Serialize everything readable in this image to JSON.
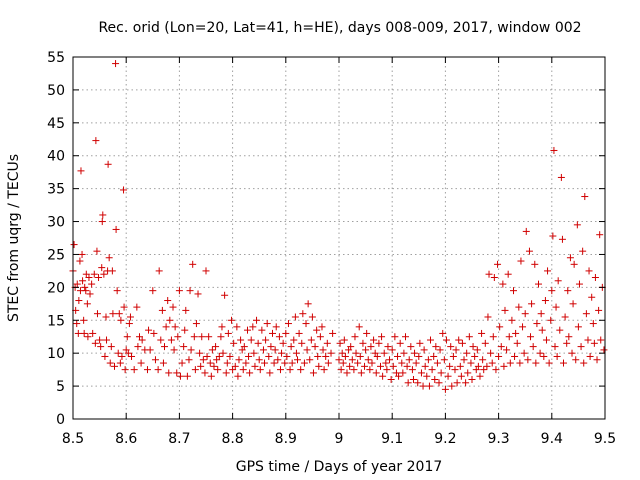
{
  "chart_data": {
    "type": "scatter",
    "title": "Rec. orid (Lon=20, Lat=41, h=HE), days 008-009, 2017, window 002",
    "xlabel": "GPS time / Days of year 2017",
    "ylabel": "STEC from uqrg / TECUs",
    "xlim": [
      8.5,
      9.5
    ],
    "ylim": [
      0,
      55
    ],
    "xticks": [
      "8.5",
      "8.6",
      "8.7",
      "8.8",
      "8.9",
      "9",
      "9.1",
      "9.2",
      "9.3",
      "9.4",
      "9.5"
    ],
    "yticks": [
      "0",
      "5",
      "10",
      "15",
      "20",
      "25",
      "30",
      "35",
      "40",
      "45",
      "50",
      "55"
    ],
    "grid": true,
    "marker": "+",
    "color": "#d00000",
    "points": [
      [
        8.5,
        22.5
      ],
      [
        8.502,
        26.5
      ],
      [
        8.504,
        20.0
      ],
      [
        8.505,
        16.5
      ],
      [
        8.507,
        14.5
      ],
      [
        8.508,
        20.5
      ],
      [
        8.51,
        13.0
      ],
      [
        8.511,
        18.0
      ],
      [
        8.513,
        24.0
      ],
      [
        8.514,
        19.5
      ],
      [
        8.515,
        37.7
      ],
      [
        8.517,
        25.0
      ],
      [
        8.518,
        21.0
      ],
      [
        8.52,
        15.0
      ],
      [
        8.521,
        13.0
      ],
      [
        8.522,
        20.0
      ],
      [
        8.524,
        19.5
      ],
      [
        8.525,
        22.0
      ],
      [
        8.527,
        17.5
      ],
      [
        8.528,
        12.5
      ],
      [
        8.53,
        21.5
      ],
      [
        8.532,
        19.0
      ],
      [
        8.535,
        20.5
      ],
      [
        8.537,
        13.0
      ],
      [
        8.54,
        22.0
      ],
      [
        8.542,
        11.5
      ],
      [
        8.543,
        42.3
      ],
      [
        8.545,
        25.5
      ],
      [
        8.546,
        16.0
      ],
      [
        8.548,
        21.5
      ],
      [
        8.55,
        12.0
      ],
      [
        8.552,
        11.0
      ],
      [
        8.554,
        23.0
      ],
      [
        8.555,
        30.0
      ],
      [
        8.556,
        31.0
      ],
      [
        8.558,
        22.0
      ],
      [
        8.56,
        9.5
      ],
      [
        8.562,
        15.5
      ],
      [
        8.563,
        12.0
      ],
      [
        8.565,
        22.5
      ],
      [
        8.566,
        38.7
      ],
      [
        8.568,
        24.5
      ],
      [
        8.57,
        8.5
      ],
      [
        8.572,
        11.0
      ],
      [
        8.574,
        22.5
      ],
      [
        8.575,
        16.0
      ],
      [
        8.578,
        8.0
      ],
      [
        8.58,
        54.0
      ],
      [
        8.581,
        28.8
      ],
      [
        8.583,
        19.5
      ],
      [
        8.585,
        10.0
      ],
      [
        8.587,
        16.0
      ],
      [
        8.589,
        8.5
      ],
      [
        8.59,
        15.0
      ],
      [
        8.592,
        9.5
      ],
      [
        8.595,
        34.8
      ],
      [
        8.596,
        17.0
      ],
      [
        8.598,
        7.5
      ],
      [
        8.6,
        10.5
      ],
      [
        8.602,
        12.5
      ],
      [
        8.604,
        10.0
      ],
      [
        8.606,
        14.5
      ],
      [
        8.608,
        15.5
      ],
      [
        8.61,
        9.5
      ],
      [
        8.615,
        7.5
      ],
      [
        8.62,
        17.0
      ],
      [
        8.622,
        11.0
      ],
      [
        8.625,
        12.5
      ],
      [
        8.628,
        8.5
      ],
      [
        8.63,
        12.0
      ],
      [
        8.635,
        10.5
      ],
      [
        8.64,
        7.5
      ],
      [
        8.642,
        13.5
      ],
      [
        8.645,
        10.5
      ],
      [
        8.65,
        19.5
      ],
      [
        8.652,
        13.0
      ],
      [
        8.655,
        9.0
      ],
      [
        8.66,
        7.5
      ],
      [
        8.662,
        22.5
      ],
      [
        8.665,
        12.0
      ],
      [
        8.668,
        16.5
      ],
      [
        8.67,
        8.5
      ],
      [
        8.672,
        11.0
      ],
      [
        8.675,
        14.0
      ],
      [
        8.678,
        18.0
      ],
      [
        8.68,
        7.0
      ],
      [
        8.682,
        15.0
      ],
      [
        8.685,
        12.0
      ],
      [
        8.688,
        17.0
      ],
      [
        8.69,
        10.5
      ],
      [
        8.692,
        14.0
      ],
      [
        8.695,
        7.0
      ],
      [
        8.697,
        12.5
      ],
      [
        8.7,
        19.5
      ],
      [
        8.702,
        6.5
      ],
      [
        8.705,
        8.5
      ],
      [
        8.708,
        11.0
      ],
      [
        8.71,
        13.5
      ],
      [
        8.712,
        16.5
      ],
      [
        8.715,
        6.5
      ],
      [
        8.718,
        9.0
      ],
      [
        8.72,
        19.5
      ],
      [
        8.722,
        10.5
      ],
      [
        8.725,
        23.5
      ],
      [
        8.728,
        12.5
      ],
      [
        8.73,
        7.5
      ],
      [
        8.732,
        14.5
      ],
      [
        8.735,
        19.0
      ],
      [
        8.738,
        10.0
      ],
      [
        8.74,
        8.0
      ],
      [
        8.742,
        12.5
      ],
      [
        8.745,
        9.0
      ],
      [
        8.748,
        7.0
      ],
      [
        8.75,
        22.5
      ],
      [
        8.752,
        9.5
      ],
      [
        8.755,
        12.5
      ],
      [
        8.758,
        8.5
      ],
      [
        8.76,
        6.5
      ],
      [
        8.762,
        10.5
      ],
      [
        8.765,
        8.0
      ],
      [
        8.768,
        11.0
      ],
      [
        8.77,
        9.0
      ],
      [
        8.772,
        7.5
      ],
      [
        8.775,
        9.5
      ],
      [
        8.778,
        12.5
      ],
      [
        8.78,
        14.0
      ],
      [
        8.782,
        10.0
      ],
      [
        8.785,
        18.8
      ],
      [
        8.788,
        7.0
      ],
      [
        8.79,
        8.5
      ],
      [
        8.792,
        13.0
      ],
      [
        8.795,
        9.5
      ],
      [
        8.798,
        15.0
      ],
      [
        8.8,
        7.5
      ],
      [
        8.802,
        11.5
      ],
      [
        8.805,
        8.0
      ],
      [
        8.808,
        14.0
      ],
      [
        8.81,
        6.5
      ],
      [
        8.812,
        9.0
      ],
      [
        8.815,
        12.0
      ],
      [
        8.818,
        10.5
      ],
      [
        8.82,
        7.5
      ],
      [
        8.822,
        11.0
      ],
      [
        8.825,
        8.5
      ],
      [
        8.828,
        13.5
      ],
      [
        8.83,
        9.5
      ],
      [
        8.832,
        7.0
      ],
      [
        8.835,
        12.0
      ],
      [
        8.838,
        14.0
      ],
      [
        8.84,
        10.0
      ],
      [
        8.842,
        8.0
      ],
      [
        8.845,
        15.0
      ],
      [
        8.848,
        11.5
      ],
      [
        8.85,
        9.0
      ],
      [
        8.852,
        7.5
      ],
      [
        8.855,
        13.5
      ],
      [
        8.858,
        10.5
      ],
      [
        8.86,
        8.5
      ],
      [
        8.862,
        12.0
      ],
      [
        8.865,
        14.5
      ],
      [
        8.868,
        9.5
      ],
      [
        8.87,
        7.0
      ],
      [
        8.872,
        11.0
      ],
      [
        8.875,
        13.0
      ],
      [
        8.878,
        8.5
      ],
      [
        8.88,
        10.5
      ],
      [
        8.882,
        14.0
      ],
      [
        8.885,
        9.0
      ],
      [
        8.888,
        12.5
      ],
      [
        8.89,
        7.5
      ],
      [
        8.892,
        10.0
      ],
      [
        8.895,
        11.5
      ],
      [
        8.898,
        8.5
      ],
      [
        8.9,
        13.0
      ],
      [
        8.902,
        9.5
      ],
      [
        8.905,
        14.5
      ],
      [
        8.908,
        7.5
      ],
      [
        8.91,
        11.0
      ],
      [
        8.912,
        8.5
      ],
      [
        8.915,
        12.0
      ],
      [
        8.918,
        15.5
      ],
      [
        8.92,
        10.0
      ],
      [
        8.922,
        9.0
      ],
      [
        8.925,
        13.0
      ],
      [
        8.928,
        7.5
      ],
      [
        8.93,
        11.5
      ],
      [
        8.932,
        16.0
      ],
      [
        8.935,
        8.5
      ],
      [
        8.938,
        14.5
      ],
      [
        8.94,
        10.5
      ],
      [
        8.942,
        17.5
      ],
      [
        8.945,
        9.0
      ],
      [
        8.948,
        12.0
      ],
      [
        8.95,
        15.5
      ],
      [
        8.952,
        7.0
      ],
      [
        8.955,
        11.0
      ],
      [
        8.958,
        13.5
      ],
      [
        8.96,
        9.5
      ],
      [
        8.962,
        8.0
      ],
      [
        8.965,
        12.5
      ],
      [
        8.968,
        14.0
      ],
      [
        8.97,
        10.5
      ],
      [
        8.972,
        7.5
      ],
      [
        8.975,
        9.5
      ],
      [
        8.978,
        11.5
      ],
      [
        8.98,
        8.5
      ],
      [
        8.985,
        10.0
      ],
      [
        8.988,
        13.0
      ],
      [
        9.0,
        9.0
      ],
      [
        9.002,
        11.5
      ],
      [
        9.004,
        7.5
      ],
      [
        9.006,
        10.0
      ],
      [
        9.008,
        8.5
      ],
      [
        9.01,
        12.0
      ],
      [
        9.012,
        9.5
      ],
      [
        9.015,
        7.0
      ],
      [
        9.018,
        10.5
      ],
      [
        9.02,
        8.0
      ],
      [
        9.022,
        11.0
      ],
      [
        9.025,
        9.0
      ],
      [
        9.028,
        7.5
      ],
      [
        9.03,
        12.5
      ],
      [
        9.032,
        10.0
      ],
      [
        9.035,
        8.5
      ],
      [
        9.038,
        14.0
      ],
      [
        9.04,
        9.5
      ],
      [
        9.042,
        7.0
      ],
      [
        9.045,
        11.5
      ],
      [
        9.048,
        8.0
      ],
      [
        9.05,
        10.5
      ],
      [
        9.052,
        13.0
      ],
      [
        9.055,
        9.0
      ],
      [
        9.058,
        7.5
      ],
      [
        9.06,
        11.0
      ],
      [
        9.062,
        8.5
      ],
      [
        9.065,
        12.0
      ],
      [
        9.068,
        10.0
      ],
      [
        9.07,
        7.0
      ],
      [
        9.072,
        9.5
      ],
      [
        9.075,
        11.5
      ],
      [
        9.078,
        8.0
      ],
      [
        9.08,
        12.5
      ],
      [
        9.082,
        6.5
      ],
      [
        9.085,
        10.0
      ],
      [
        9.088,
        8.5
      ],
      [
        9.09,
        7.5
      ],
      [
        9.092,
        11.0
      ],
      [
        9.095,
        9.0
      ],
      [
        9.098,
        6.0
      ],
      [
        9.1,
        10.5
      ],
      [
        9.102,
        8.0
      ],
      [
        9.105,
        12.5
      ],
      [
        9.108,
        7.0
      ],
      [
        9.11,
        9.5
      ],
      [
        9.112,
        6.5
      ],
      [
        9.115,
        11.5
      ],
      [
        9.118,
        8.5
      ],
      [
        9.12,
        7.0
      ],
      [
        9.122,
        10.0
      ],
      [
        9.125,
        12.5
      ],
      [
        9.128,
        8.0
      ],
      [
        9.13,
        5.5
      ],
      [
        9.132,
        9.0
      ],
      [
        9.135,
        11.0
      ],
      [
        9.138,
        7.5
      ],
      [
        9.14,
        6.0
      ],
      [
        9.142,
        10.0
      ],
      [
        9.145,
        8.5
      ],
      [
        9.148,
        5.5
      ],
      [
        9.15,
        9.5
      ],
      [
        9.152,
        11.5
      ],
      [
        9.155,
        7.0
      ],
      [
        9.158,
        5.0
      ],
      [
        9.16,
        10.5
      ],
      [
        9.162,
        8.0
      ],
      [
        9.165,
        6.5
      ],
      [
        9.168,
        9.0
      ],
      [
        9.17,
        5.0
      ],
      [
        9.172,
        12.0
      ],
      [
        9.175,
        7.5
      ],
      [
        9.178,
        9.5
      ],
      [
        9.18,
        6.0
      ],
      [
        9.182,
        11.0
      ],
      [
        9.185,
        8.5
      ],
      [
        9.188,
        5.5
      ],
      [
        9.19,
        10.5
      ],
      [
        9.192,
        7.0
      ],
      [
        9.195,
        13.0
      ],
      [
        9.198,
        9.0
      ],
      [
        9.2,
        4.5
      ],
      [
        9.202,
        12.0
      ],
      [
        9.205,
        6.5
      ],
      [
        9.208,
        8.0
      ],
      [
        9.21,
        11.0
      ],
      [
        9.212,
        5.0
      ],
      [
        9.215,
        9.5
      ],
      [
        9.218,
        7.5
      ],
      [
        9.22,
        10.5
      ],
      [
        9.222,
        5.5
      ],
      [
        9.225,
        12.0
      ],
      [
        9.228,
        8.0
      ],
      [
        9.23,
        6.5
      ],
      [
        9.232,
        11.5
      ],
      [
        9.235,
        9.0
      ],
      [
        9.238,
        5.5
      ],
      [
        9.24,
        10.0
      ],
      [
        9.242,
        7.0
      ],
      [
        9.245,
        12.5
      ],
      [
        9.248,
        8.5
      ],
      [
        9.25,
        6.0
      ],
      [
        9.252,
        11.0
      ],
      [
        9.255,
        9.5
      ],
      [
        9.258,
        7.5
      ],
      [
        9.26,
        10.5
      ],
      [
        9.262,
        8.0
      ],
      [
        9.265,
        6.5
      ],
      [
        9.268,
        13.0
      ],
      [
        9.27,
        9.0
      ],
      [
        9.272,
        7.5
      ],
      [
        9.275,
        11.5
      ],
      [
        9.278,
        8.0
      ],
      [
        9.28,
        15.5
      ],
      [
        9.282,
        22.0
      ],
      [
        9.285,
        10.0
      ],
      [
        9.288,
        8.5
      ],
      [
        9.29,
        12.5
      ],
      [
        9.292,
        21.5
      ],
      [
        9.295,
        7.5
      ],
      [
        9.298,
        23.5
      ],
      [
        9.3,
        9.5
      ],
      [
        9.302,
        14.0
      ],
      [
        9.305,
        11.0
      ],
      [
        9.308,
        20.5
      ],
      [
        9.31,
        8.0
      ],
      [
        9.312,
        16.5
      ],
      [
        9.315,
        10.5
      ],
      [
        9.318,
        22.0
      ],
      [
        9.32,
        12.5
      ],
      [
        9.322,
        8.5
      ],
      [
        9.325,
        15.0
      ],
      [
        9.328,
        19.5
      ],
      [
        9.33,
        9.5
      ],
      [
        9.332,
        13.0
      ],
      [
        9.335,
        11.5
      ],
      [
        9.338,
        17.0
      ],
      [
        9.34,
        8.5
      ],
      [
        9.342,
        24.0
      ],
      [
        9.345,
        14.0
      ],
      [
        9.348,
        10.0
      ],
      [
        9.35,
        16.0
      ],
      [
        9.352,
        28.5
      ],
      [
        9.355,
        9.0
      ],
      [
        9.358,
        25.5
      ],
      [
        9.36,
        12.5
      ],
      [
        9.362,
        17.5
      ],
      [
        9.365,
        11.0
      ],
      [
        9.368,
        23.5
      ],
      [
        9.37,
        8.5
      ],
      [
        9.372,
        14.5
      ],
      [
        9.375,
        20.5
      ],
      [
        9.378,
        10.0
      ],
      [
        9.38,
        16.0
      ],
      [
        9.382,
        13.5
      ],
      [
        9.385,
        9.5
      ],
      [
        9.388,
        18.0
      ],
      [
        9.39,
        12.0
      ],
      [
        9.392,
        22.5
      ],
      [
        9.395,
        8.5
      ],
      [
        9.398,
        15.0
      ],
      [
        9.4,
        19.5
      ],
      [
        9.402,
        27.8
      ],
      [
        9.404,
        40.8
      ],
      [
        9.406,
        11.0
      ],
      [
        9.408,
        17.0
      ],
      [
        9.41,
        9.5
      ],
      [
        9.412,
        21.0
      ],
      [
        9.415,
        13.5
      ],
      [
        9.418,
        36.7
      ],
      [
        9.42,
        27.3
      ],
      [
        9.422,
        8.5
      ],
      [
        9.425,
        15.5
      ],
      [
        9.428,
        11.5
      ],
      [
        9.43,
        19.5
      ],
      [
        9.432,
        12.5
      ],
      [
        9.435,
        24.5
      ],
      [
        9.438,
        10.0
      ],
      [
        9.44,
        17.5
      ],
      [
        9.442,
        23.5
      ],
      [
        9.445,
        9.0
      ],
      [
        9.448,
        29.5
      ],
      [
        9.45,
        14.0
      ],
      [
        9.452,
        20.5
      ],
      [
        9.455,
        11.0
      ],
      [
        9.458,
        25.5
      ],
      [
        9.46,
        8.5
      ],
      [
        9.462,
        33.8
      ],
      [
        9.465,
        16.0
      ],
      [
        9.468,
        12.0
      ],
      [
        9.47,
        22.5
      ],
      [
        9.472,
        9.5
      ],
      [
        9.475,
        18.5
      ],
      [
        9.478,
        14.5
      ],
      [
        9.48,
        11.5
      ],
      [
        9.482,
        21.5
      ],
      [
        9.485,
        9.0
      ],
      [
        9.488,
        16.5
      ],
      [
        9.49,
        28.0
      ],
      [
        9.492,
        12.0
      ],
      [
        9.495,
        20.0
      ],
      [
        9.498,
        10.5
      ]
    ]
  }
}
